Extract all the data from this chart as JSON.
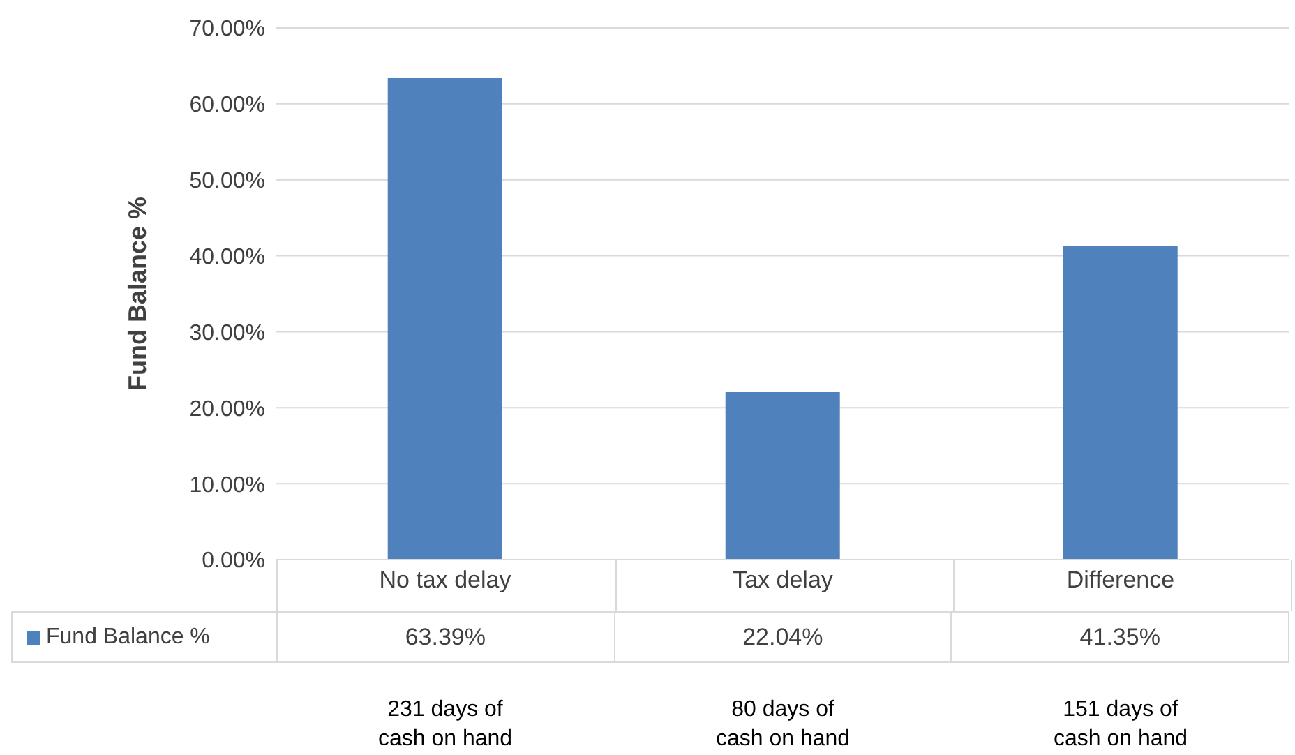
{
  "chart_data": {
    "type": "bar",
    "ylabel": "Fund Balance %",
    "categories": [
      "No tax delay",
      "Tax delay",
      "Difference"
    ],
    "series": [
      {
        "name": "Fund Balance %",
        "color": "#4f81bd",
        "values": [
          63.39,
          22.04,
          41.35
        ],
        "value_labels": [
          "63.39%",
          "22.04%",
          "41.35%"
        ]
      }
    ],
    "ylim": [
      0,
      70
    ],
    "yticks": [
      {
        "value": 0,
        "label": "0.00%"
      },
      {
        "value": 10,
        "label": "10.00%"
      },
      {
        "value": 20,
        "label": "20.00%"
      },
      {
        "value": 30,
        "label": "30.00%"
      },
      {
        "value": 40,
        "label": "40.00%"
      },
      {
        "value": 50,
        "label": "50.00%"
      },
      {
        "value": 60,
        "label": "60.00%"
      },
      {
        "value": 70,
        "label": "70.00%"
      }
    ],
    "grid": "y",
    "legend": "bottom",
    "annotations": [
      "231 days of cash on hand",
      "80 days of cash on hand",
      "151 days of cash on hand"
    ]
  }
}
